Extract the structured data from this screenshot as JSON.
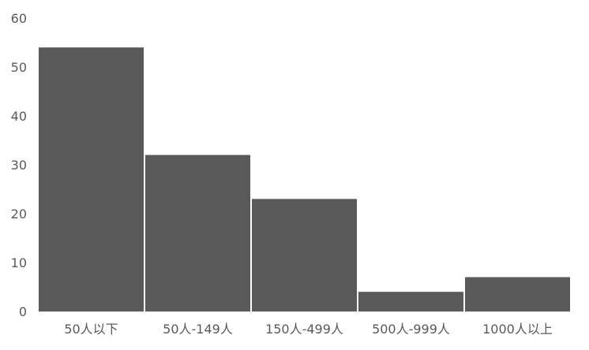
{
  "chart_data": {
    "type": "bar",
    "categories": [
      "50人以下",
      "50人-149人",
      "150人-499人",
      "500人-999人",
      "1000人以上"
    ],
    "values": [
      54,
      32,
      23,
      4,
      7
    ],
    "ylim": [
      0,
      60
    ],
    "yticks": [
      0,
      10,
      20,
      30,
      40,
      50,
      60
    ],
    "grid": false,
    "title": "",
    "xlabel": "",
    "ylabel": "",
    "colors": {
      "bar": "#595959",
      "axis": "#d9d9d9",
      "text": "#595959"
    }
  }
}
